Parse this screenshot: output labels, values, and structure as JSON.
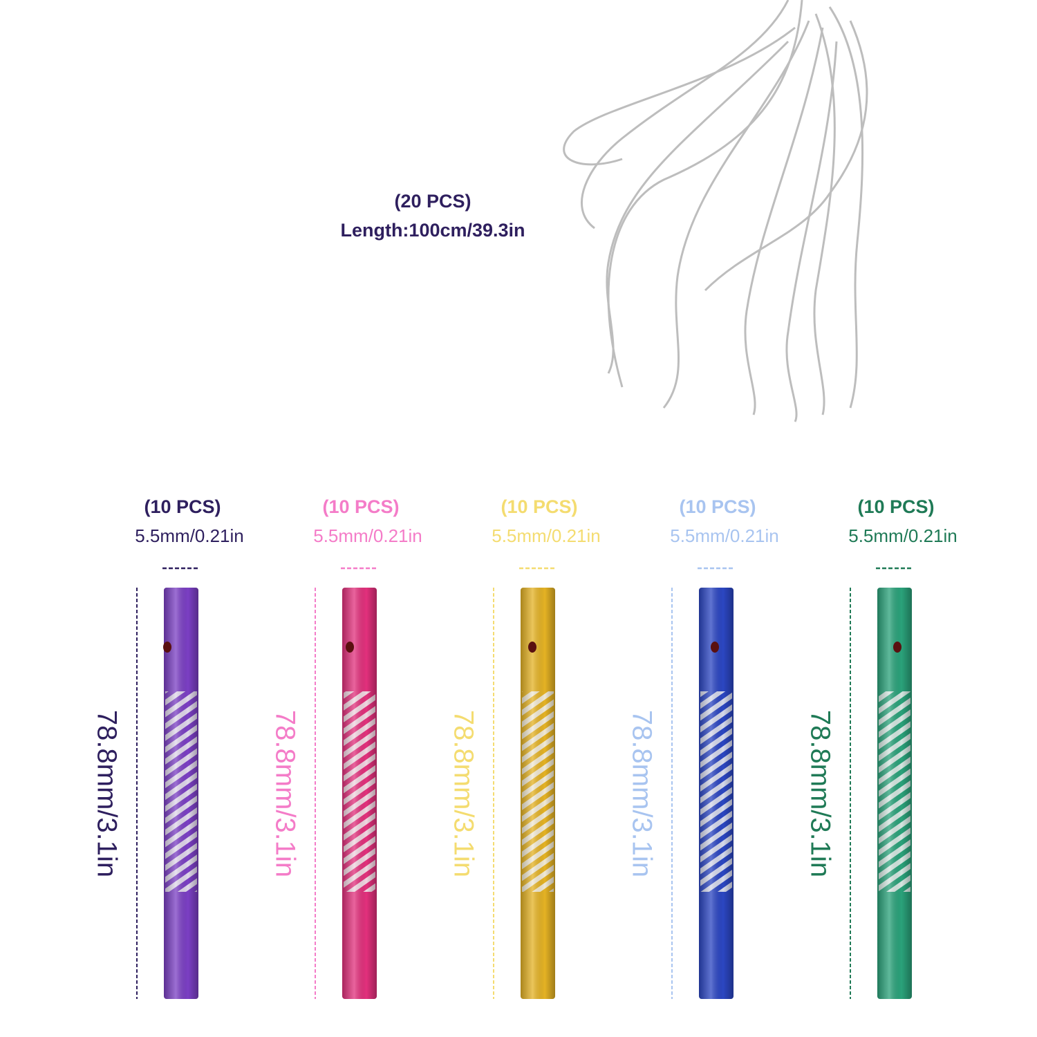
{
  "cord": {
    "count": "(20 PCS)",
    "length": "Length:100cm/39.3in"
  },
  "tubes": [
    {
      "count": "(10 PCS)",
      "diameter": "5.5mm/0.21in",
      "length": "78.8mm/3.1in",
      "text_color": "#2e1f5e",
      "color": "#7b3fc4"
    },
    {
      "count": "(10 PCS)",
      "diameter": "5.5mm/0.21in",
      "length": "78.8mm/3.1in",
      "text_color": "#f47cc8",
      "color": "#e2307c"
    },
    {
      "count": "(10 PCS)",
      "diameter": "5.5mm/0.21in",
      "length": "78.8mm/3.1in",
      "text_color": "#f4dc70",
      "color": "#e4b224"
    },
    {
      "count": "(10 PCS)",
      "diameter": "5.5mm/0.21in",
      "length": "78.8mm/3.1in",
      "text_color": "#a8c4f0",
      "color": "#2b46c2"
    },
    {
      "count": "(10 PCS)",
      "diameter": "5.5mm/0.21in",
      "length": "78.8mm/3.1in",
      "text_color": "#1f7a56",
      "color": "#2aa27a"
    }
  ]
}
